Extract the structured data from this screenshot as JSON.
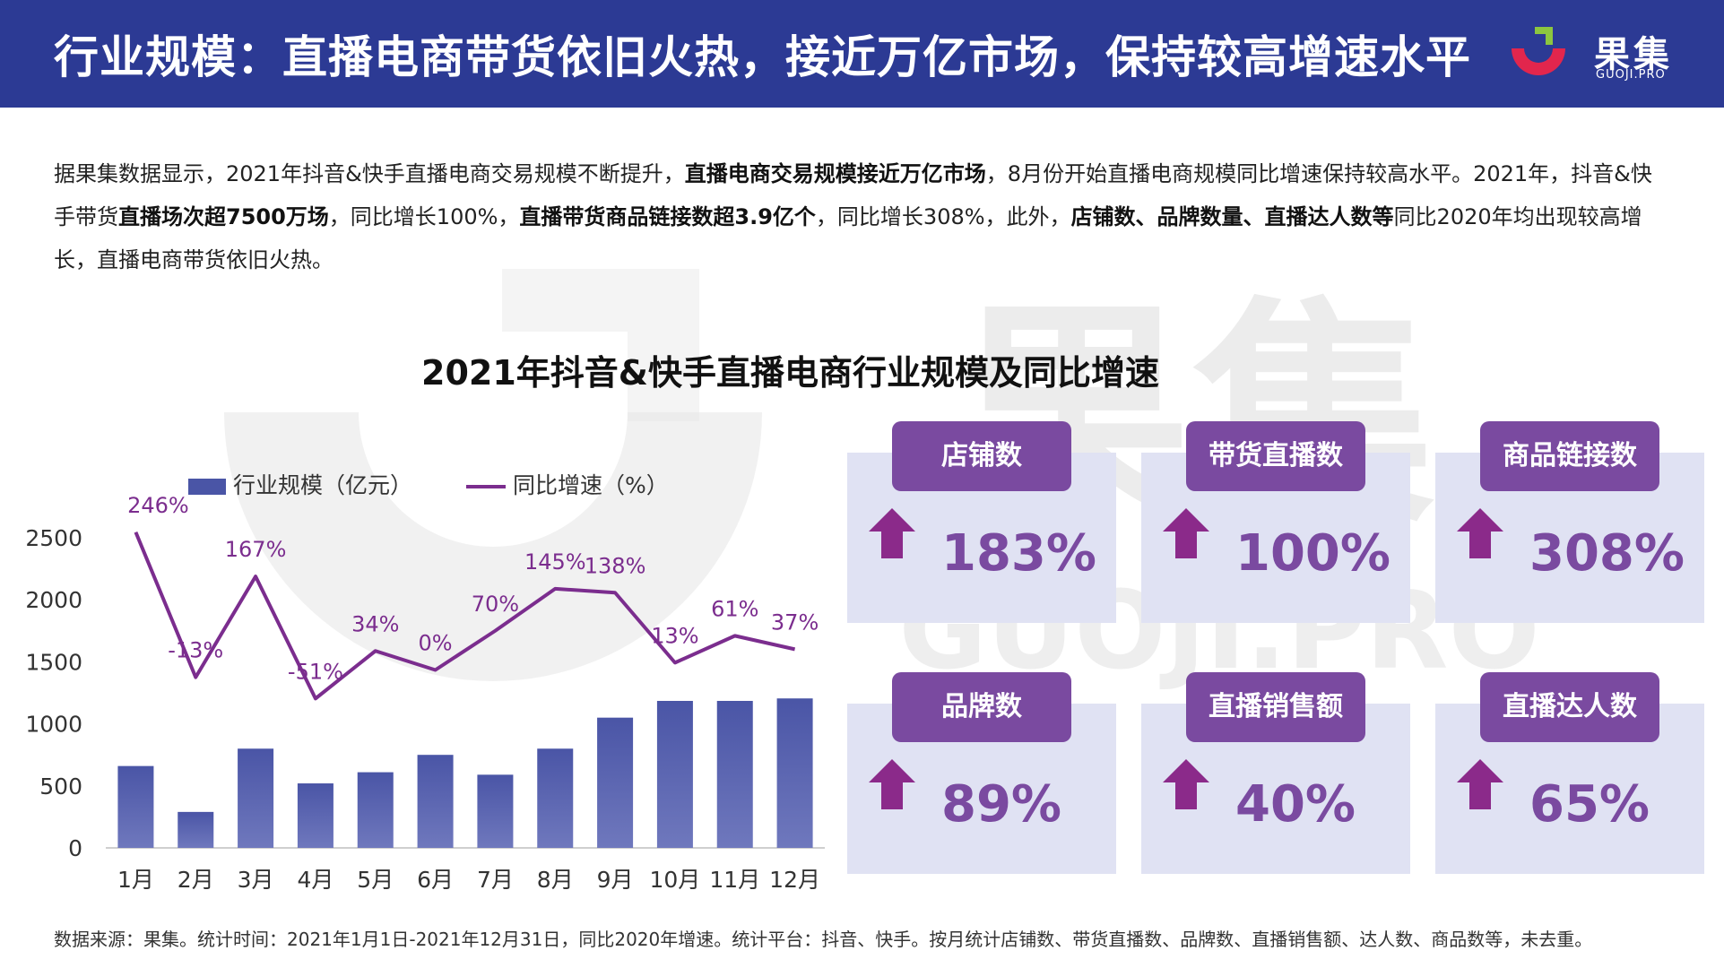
{
  "header": {
    "title": "行业规模：直播电商带货依旧火热，接近万亿市场，保持较高增速水平",
    "logo_text": "果集",
    "logo_sub": "GUOJI.PRO",
    "colors": {
      "bar": "#2c3a94",
      "logo_red": "#e2264d",
      "logo_green": "#8cc63f"
    }
  },
  "intro": {
    "p1": "据果集数据显示，2021年抖音&快手直播电商交易规模不断提升，",
    "b1": "直播电商交易规模接近万亿市场",
    "p2": "，8月份开始直播电商规模同比增速保持较高水平。2021年，抖音&快手带货",
    "b2": "直播场次超7500万场",
    "p3": "，同比增长100%，",
    "b3": "直播带货商品链接数超3.9亿个",
    "p4": "，同比增长308%，此外，",
    "b4": "店铺数、品牌数量、直播达人数等",
    "p5": "同比2020年均出现较高增长，直播电商带货依旧火热。"
  },
  "watermark": {
    "text1": "果集",
    "text2": "GUOJI.PRO"
  },
  "chart_data": {
    "type": "bar",
    "title": "2021年抖音&快手直播电商行业规模及同比增速",
    "categories": [
      "1月",
      "2月",
      "3月",
      "4月",
      "5月",
      "6月",
      "7月",
      "8月",
      "9月",
      "10月",
      "11月",
      "12月"
    ],
    "series": [
      {
        "name": "行业规模（亿元）",
        "type": "bar",
        "color": "#4a55a6",
        "values": [
          660,
          290,
          800,
          520,
          610,
          750,
          590,
          800,
          1050,
          1185,
          1185,
          1205
        ]
      },
      {
        "name": "同比增速（%）",
        "type": "line",
        "color": "#7b2d8e",
        "values": [
          246,
          -13,
          167,
          -51,
          34,
          0,
          70,
          145,
          138,
          13,
          61,
          37
        ],
        "labels": [
          "246%",
          "-13%",
          "167%",
          "-51%",
          "34%",
          "0%",
          "70%",
          "145%",
          "138%",
          "13%",
          "61%",
          "37%"
        ]
      }
    ],
    "y_ticks": [
      "2500",
      "2000",
      "1500",
      "1000",
      "500",
      "0"
    ],
    "ylim": [
      0,
      2500
    ],
    "legend_position": "top"
  },
  "kpis": [
    {
      "label": "店铺数",
      "value": "183%"
    },
    {
      "label": "带货直播数",
      "value": "100%"
    },
    {
      "label": "商品链接数",
      "value": "308%"
    },
    {
      "label": "品牌数",
      "value": "89%"
    },
    {
      "label": "直播销售额",
      "value": "40%"
    },
    {
      "label": "直播达人数",
      "value": "65%"
    }
  ],
  "kpi_colors": {
    "box": "#e0e2f3",
    "label": "#7a4aa0",
    "arrow": "#8b2a8a"
  },
  "footer": "数据来源：果集。统计时间：2021年1月1日-2021年12月31日，同比2020年增速。统计平台：抖音、快手。按月统计店铺数、带货直播数、品牌数、直播销售额、达人数、商品数等，未去重。"
}
